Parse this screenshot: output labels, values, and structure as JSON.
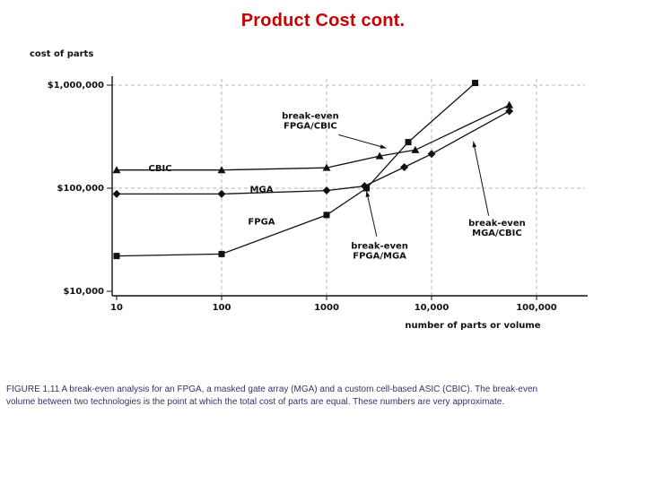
{
  "slide": {
    "title": "Product Cost cont.",
    "title_color": "#CC0000",
    "caption": "FIGURE 1.11 A break-even analysis for an FPGA, a masked gate array (MGA) and a custom cell-based ASIC (CBIC). The break-even volume between two technologies is the point at which the total cost of parts are equal. These numbers are very approximate.",
    "caption_color": "#333366"
  },
  "chart_data": {
    "type": "line",
    "title": "",
    "xlabel": "number of parts or volume",
    "ylabel": "cost of parts",
    "xscale": "log",
    "yscale": "log",
    "xlim": [
      10,
      100000
    ],
    "ylim": [
      10000,
      1000000
    ],
    "grid": "dashed",
    "line_color": "#111111",
    "grid_color": "#b9b9b9",
    "x_ticks": [
      {
        "value": 10,
        "label": "10",
        "grid": false
      },
      {
        "value": 100,
        "label": "100",
        "grid": true
      },
      {
        "value": 1000,
        "label": "1000",
        "grid": true
      },
      {
        "value": 10000,
        "label": "10,000",
        "grid": true
      },
      {
        "value": 100000,
        "label": "100,000",
        "grid": true
      }
    ],
    "y_ticks": [
      {
        "value": 10000,
        "label": "$10,000",
        "grid": false
      },
      {
        "value": 100000,
        "label": "$100,000",
        "grid": true
      },
      {
        "value": 1000000,
        "label": "$1,000,000",
        "grid": true
      }
    ],
    "series": [
      {
        "name": "CBIC",
        "marker": "triangle",
        "label_at": [
          26,
          155000
        ],
        "points": [
          [
            10,
            150000
          ],
          [
            100,
            150000
          ],
          [
            1000,
            158000
          ],
          [
            3200,
            205000
          ],
          [
            7000,
            235000
          ],
          [
            55000,
            640000
          ]
        ]
      },
      {
        "name": "MGA",
        "marker": "diamond",
        "label_at": [
          240,
          97000
        ],
        "points": [
          [
            10,
            88000
          ],
          [
            100,
            88000
          ],
          [
            1000,
            95000
          ],
          [
            2300,
            105000
          ],
          [
            5500,
            160000
          ],
          [
            10000,
            215000
          ],
          [
            55000,
            560000
          ]
        ]
      },
      {
        "name": "FPGA",
        "marker": "square",
        "label_at": [
          240,
          47000
        ],
        "points": [
          [
            10,
            22000
          ],
          [
            100,
            23000
          ],
          [
            1000,
            55000
          ],
          [
            2400,
            100000
          ],
          [
            6000,
            280000
          ],
          [
            26000,
            1050000
          ]
        ]
      }
    ],
    "annotations": [
      {
        "lines": [
          "break-even",
          "FPGA/CBIC"
        ],
        "label_xy": [
          700,
          470000
        ],
        "arrow_from": [
          1300,
          330000
        ],
        "arrow_to": [
          3700,
          245000
        ]
      },
      {
        "lines": [
          "break-even",
          "FPGA/MGA"
        ],
        "label_xy": [
          3200,
          26000
        ],
        "arrow_from": [
          3000,
          34000
        ],
        "arrow_to": [
          2400,
          94000
        ]
      },
      {
        "lines": [
          "break-even",
          "MGA/CBIC"
        ],
        "label_xy": [
          42000,
          43000
        ],
        "arrow_from": [
          35000,
          54000
        ],
        "arrow_to": [
          25000,
          285000
        ]
      }
    ]
  }
}
